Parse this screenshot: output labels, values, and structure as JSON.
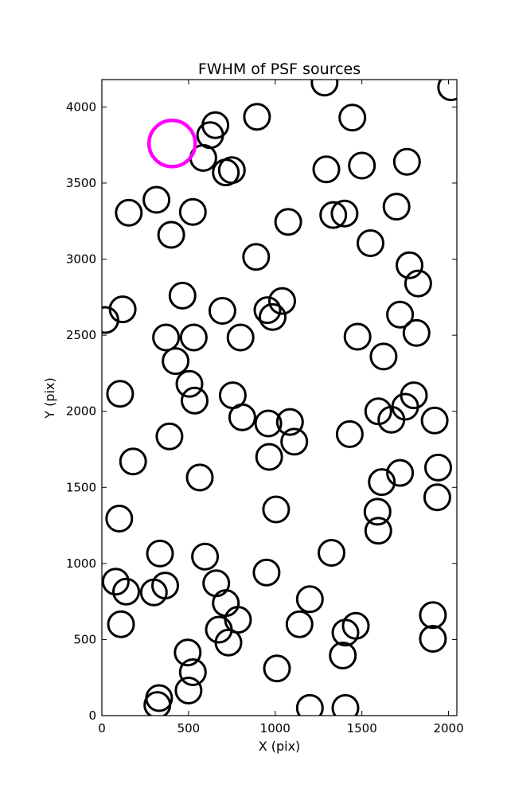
{
  "chart_data": {
    "type": "scatter",
    "title": "FWHM of PSF sources",
    "xlabel": "X (pix)",
    "ylabel": "Y (pix)",
    "xlim": [
      0,
      2048
    ],
    "ylim": [
      0,
      4180
    ],
    "xticks": [
      0,
      500,
      1000,
      1500,
      2000
    ],
    "yticks": [
      0,
      500,
      1000,
      1500,
      2000,
      2500,
      3000,
      3500,
      4000
    ],
    "grid": false,
    "legend": "none",
    "marker": "open circle",
    "colors": {
      "sources": "#000000",
      "highlight": "#ff00ff"
    },
    "highlight": {
      "x": 405,
      "y": 3760,
      "note": "larger magenta circle"
    },
    "points": [
      {
        "x": 1285,
        "y": 4160
      },
      {
        "x": 2015,
        "y": 4130
      },
      {
        "x": 655,
        "y": 3880
      },
      {
        "x": 895,
        "y": 3935
      },
      {
        "x": 1445,
        "y": 3930
      },
      {
        "x": 625,
        "y": 3815
      },
      {
        "x": 585,
        "y": 3665
      },
      {
        "x": 715,
        "y": 3570
      },
      {
        "x": 750,
        "y": 3585
      },
      {
        "x": 1295,
        "y": 3590
      },
      {
        "x": 1500,
        "y": 3615
      },
      {
        "x": 1760,
        "y": 3640
      },
      {
        "x": 315,
        "y": 3390
      },
      {
        "x": 155,
        "y": 3305
      },
      {
        "x": 525,
        "y": 3310
      },
      {
        "x": 400,
        "y": 3160
      },
      {
        "x": 1075,
        "y": 3245
      },
      {
        "x": 1335,
        "y": 3290
      },
      {
        "x": 1400,
        "y": 3300
      },
      {
        "x": 1700,
        "y": 3345
      },
      {
        "x": 1550,
        "y": 3105
      },
      {
        "x": 890,
        "y": 3015
      },
      {
        "x": 1775,
        "y": 2960
      },
      {
        "x": 1825,
        "y": 2840
      },
      {
        "x": 465,
        "y": 2760
      },
      {
        "x": 20,
        "y": 2600
      },
      {
        "x": 120,
        "y": 2670
      },
      {
        "x": 695,
        "y": 2660
      },
      {
        "x": 955,
        "y": 2665
      },
      {
        "x": 1040,
        "y": 2725
      },
      {
        "x": 985,
        "y": 2620
      },
      {
        "x": 1720,
        "y": 2635
      },
      {
        "x": 1815,
        "y": 2515
      },
      {
        "x": 370,
        "y": 2485
      },
      {
        "x": 530,
        "y": 2485
      },
      {
        "x": 800,
        "y": 2485
      },
      {
        "x": 1475,
        "y": 2490
      },
      {
        "x": 1625,
        "y": 2360
      },
      {
        "x": 425,
        "y": 2330
      },
      {
        "x": 505,
        "y": 2180
      },
      {
        "x": 105,
        "y": 2115
      },
      {
        "x": 535,
        "y": 2070
      },
      {
        "x": 755,
        "y": 2105
      },
      {
        "x": 810,
        "y": 1960
      },
      {
        "x": 960,
        "y": 1920
      },
      {
        "x": 1085,
        "y": 1930
      },
      {
        "x": 1595,
        "y": 2000
      },
      {
        "x": 1670,
        "y": 1945
      },
      {
        "x": 1750,
        "y": 2030
      },
      {
        "x": 1800,
        "y": 2105
      },
      {
        "x": 1920,
        "y": 1940
      },
      {
        "x": 390,
        "y": 1835
      },
      {
        "x": 1110,
        "y": 1800
      },
      {
        "x": 1430,
        "y": 1850
      },
      {
        "x": 180,
        "y": 1670
      },
      {
        "x": 965,
        "y": 1700
      },
      {
        "x": 1940,
        "y": 1630
      },
      {
        "x": 1720,
        "y": 1595
      },
      {
        "x": 1615,
        "y": 1535
      },
      {
        "x": 565,
        "y": 1565
      },
      {
        "x": 1935,
        "y": 1435
      },
      {
        "x": 1005,
        "y": 1355
      },
      {
        "x": 1590,
        "y": 1340
      },
      {
        "x": 100,
        "y": 1295
      },
      {
        "x": 1595,
        "y": 1215
      },
      {
        "x": 335,
        "y": 1065
      },
      {
        "x": 595,
        "y": 1045
      },
      {
        "x": 1325,
        "y": 1070
      },
      {
        "x": 80,
        "y": 880
      },
      {
        "x": 140,
        "y": 815
      },
      {
        "x": 300,
        "y": 810
      },
      {
        "x": 365,
        "y": 855
      },
      {
        "x": 660,
        "y": 870
      },
      {
        "x": 715,
        "y": 740
      },
      {
        "x": 950,
        "y": 940
      },
      {
        "x": 1200,
        "y": 765
      },
      {
        "x": 785,
        "y": 630
      },
      {
        "x": 675,
        "y": 565
      },
      {
        "x": 730,
        "y": 480
      },
      {
        "x": 110,
        "y": 600
      },
      {
        "x": 1140,
        "y": 600
      },
      {
        "x": 1405,
        "y": 545
      },
      {
        "x": 1465,
        "y": 590
      },
      {
        "x": 1390,
        "y": 395
      },
      {
        "x": 1910,
        "y": 660
      },
      {
        "x": 1910,
        "y": 505
      },
      {
        "x": 495,
        "y": 415
      },
      {
        "x": 525,
        "y": 285
      },
      {
        "x": 500,
        "y": 165
      },
      {
        "x": 1010,
        "y": 310
      },
      {
        "x": 330,
        "y": 115
      },
      {
        "x": 320,
        "y": 70
      },
      {
        "x": 1200,
        "y": 50
      },
      {
        "x": 1405,
        "y": 50
      }
    ]
  }
}
